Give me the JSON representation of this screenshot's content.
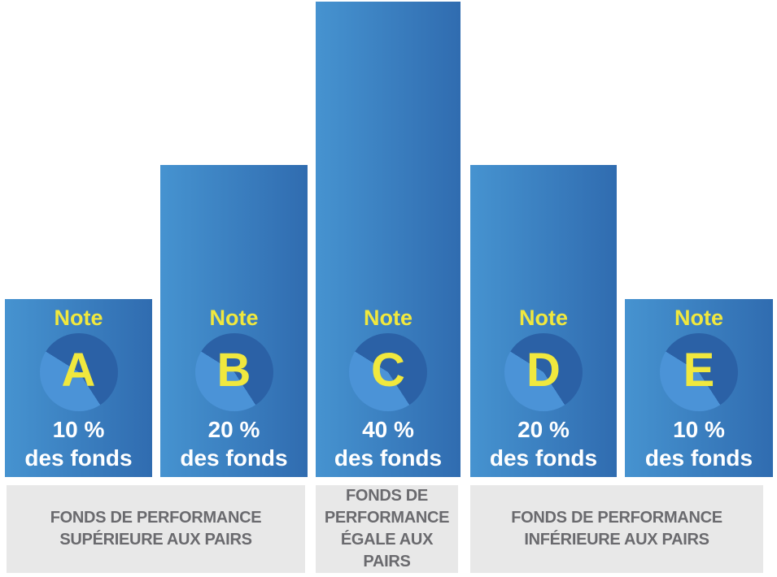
{
  "chart_data": {
    "type": "bar",
    "title": "",
    "categories": [
      "Note A",
      "Note B",
      "Note C",
      "Note D",
      "Note E"
    ],
    "values": [
      10,
      20,
      40,
      20,
      10
    ],
    "value_unit": "% des fonds",
    "value_labels": [
      "10 % des fonds",
      "20 % des fonds",
      "40 % des fonds",
      "20 % des fonds",
      "10 % des fonds"
    ],
    "group_annotations": [
      {
        "bars": [
          "A",
          "B"
        ],
        "label": "FONDS DE PERFORMANCE SUPÉRIEURE AUX PAIRS"
      },
      {
        "bars": [
          "C"
        ],
        "label": "FONDS DE PERFORMANCE ÉGALE AUX PAIRS"
      },
      {
        "bars": [
          "D",
          "E"
        ],
        "label": "FONDS DE PERFORMANCE INFÉRIEURE AUX PAIRS"
      }
    ],
    "xlabel": "",
    "ylabel": "",
    "legend": false,
    "grid": false
  },
  "bars": [
    {
      "note_label": "Note",
      "grade": "A",
      "percent": "10 %",
      "caption": "des fonds"
    },
    {
      "note_label": "Note",
      "grade": "B",
      "percent": "20 %",
      "caption": "des fonds"
    },
    {
      "note_label": "Note",
      "grade": "C",
      "percent": "40 %",
      "caption": "des fonds"
    },
    {
      "note_label": "Note",
      "grade": "D",
      "percent": "20 %",
      "caption": "des fonds"
    },
    {
      "note_label": "Note",
      "grade": "E",
      "percent": "10 %",
      "caption": "des fonds"
    }
  ],
  "footer": {
    "groups": [
      {
        "lines": [
          "FONDS DE PERFORMANCE",
          "SUPÉRIEURE AUX PAIRS"
        ]
      },
      {
        "lines": [
          "FONDS DE",
          "PERFORMANCE",
          "ÉGALE AUX PAIRS"
        ]
      },
      {
        "lines": [
          "FONDS DE PERFORMANCE",
          "INFÉRIEURE AUX PAIRS"
        ]
      }
    ]
  },
  "colors": {
    "bar_light": "#4693d0",
    "bar_dark": "#306cb0",
    "pie_dark": "#2b61a6",
    "pie_light": "#4b93d7",
    "yellow": "#f0e83e",
    "percent_text": "#ffffff",
    "footer_bg": "#e8e8e8",
    "footer_text": "#6a6a6e"
  }
}
